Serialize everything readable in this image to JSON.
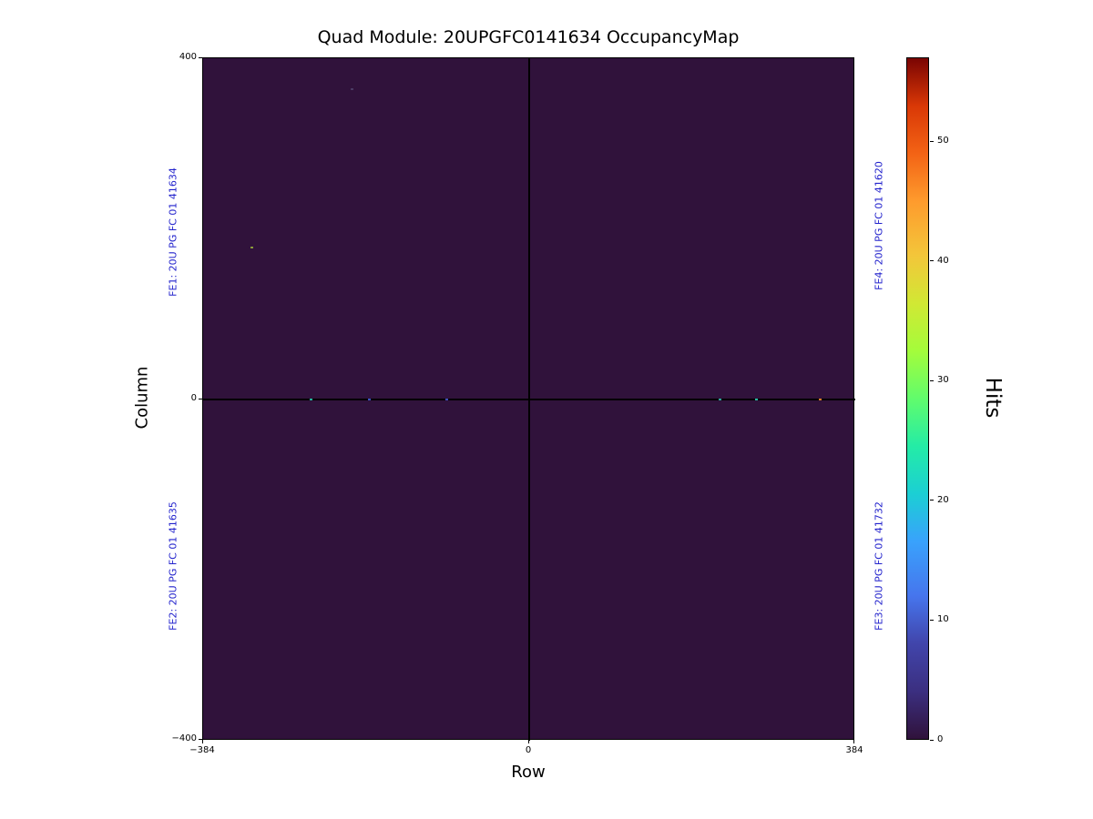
{
  "chart_data": {
    "type": "heatmap",
    "title": "Quad Module: 20UPGFC0141634 OccupancyMap",
    "xlabel": "Row",
    "ylabel": "Column",
    "xlim": [
      -384,
      384
    ],
    "ylim": [
      -400,
      400
    ],
    "xticks": [
      "−384",
      "0",
      "384"
    ],
    "yticks": [
      "400",
      "0",
      "−400"
    ],
    "grid": false,
    "background_value": 0,
    "background_color": "#30123b",
    "crosshair_color": "#000000",
    "fe_label_color": "#2222cc",
    "fe_labels": {
      "fe1": {
        "text": "FE1: 20U PG FC 01 41634",
        "side": "left",
        "half": "top"
      },
      "fe2": {
        "text": "FE2: 20U PG FC 01 41635",
        "side": "left",
        "half": "bottom"
      },
      "fe4": {
        "text": "FE4: 20U PG FC 01 41620",
        "side": "right",
        "half": "top"
      },
      "fe3": {
        "text": "FE3: 20U PG FC 01 41732",
        "side": "right",
        "half": "bottom"
      }
    },
    "colorbar": {
      "label": "Hits",
      "vmin": 0,
      "vmax": 57,
      "ticks": [
        0,
        10,
        20,
        30,
        40,
        50
      ],
      "colormap": "turbo",
      "stops": [
        {
          "pos": 0.0,
          "color": "#30123b"
        },
        {
          "pos": 0.07,
          "color": "#3b2f80"
        },
        {
          "pos": 0.14,
          "color": "#4145ab"
        },
        {
          "pos": 0.21,
          "color": "#4675ed"
        },
        {
          "pos": 0.29,
          "color": "#39a2fc"
        },
        {
          "pos": 0.36,
          "color": "#1bcfd4"
        },
        {
          "pos": 0.43,
          "color": "#24eca6"
        },
        {
          "pos": 0.5,
          "color": "#61fc6c"
        },
        {
          "pos": 0.57,
          "color": "#a4fc3b"
        },
        {
          "pos": 0.64,
          "color": "#d1e834"
        },
        {
          "pos": 0.71,
          "color": "#f3c63a"
        },
        {
          "pos": 0.79,
          "color": "#fe9b2d"
        },
        {
          "pos": 0.86,
          "color": "#f36315"
        },
        {
          "pos": 0.93,
          "color": "#d93806"
        },
        {
          "pos": 1.0,
          "color": "#7a0403"
        }
      ]
    },
    "hits": [
      {
        "row": -257,
        "col": 0,
        "color": "#21b29b"
      },
      {
        "row": -188,
        "col": 0,
        "color": "#3a53c0"
      },
      {
        "row": -97,
        "col": 0,
        "color": "#3e4fb8"
      },
      {
        "row": 225,
        "col": 0,
        "color": "#2da29a"
      },
      {
        "row": 268,
        "col": 0,
        "color": "#27b9a2"
      },
      {
        "row": 343,
        "col": 0,
        "color": "#d97c2a"
      },
      {
        "row": -209,
        "col": 364,
        "color": "#4b3a63"
      },
      {
        "row": -327,
        "col": 178,
        "color": "#8a9a3a"
      }
    ]
  }
}
